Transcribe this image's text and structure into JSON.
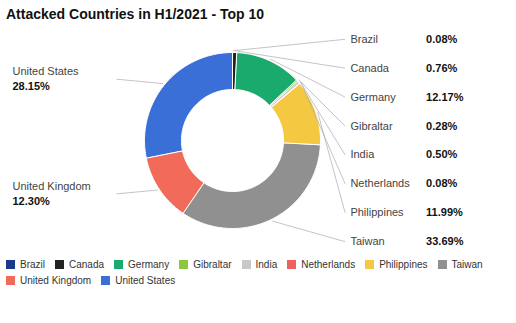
{
  "chart_data": {
    "type": "donut",
    "title": "Attacked Countries in H1/2021 - Top 10",
    "categories": [
      "Brazil",
      "Canada",
      "Germany",
      "Gibraltar",
      "India",
      "Netherlands",
      "Philippines",
      "Taiwan",
      "United Kingdom",
      "United States"
    ],
    "values": [
      0.08,
      0.76,
      12.17,
      0.28,
      0.5,
      0.08,
      11.99,
      33.69,
      12.3,
      28.15
    ],
    "value_labels": [
      "0.08%",
      "0.76%",
      "12.17%",
      "0.28%",
      "0.50%",
      "0.08%",
      "11.99%",
      "33.69%",
      "12.30%",
      "28.15%"
    ],
    "colors": [
      "#1a3a8c",
      "#222222",
      "#1aaa6e",
      "#8dc63f",
      "#c8c8c8",
      "#f06060",
      "#f5c842",
      "#909090",
      "#f26a5a",
      "#3a6fd8"
    ],
    "data_labels": true,
    "legend": "bottom"
  }
}
